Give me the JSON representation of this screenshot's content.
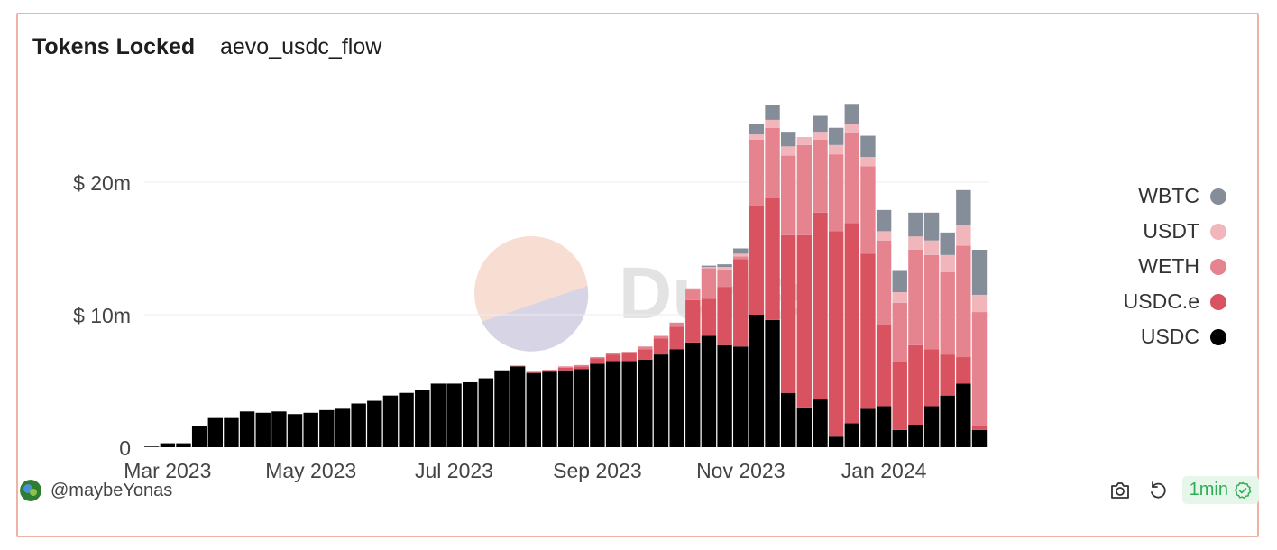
{
  "header": {
    "title": "Tokens Locked",
    "subtitle": "aevo_usdc_flow"
  },
  "footer": {
    "username": "@maybeYonas",
    "refresh_age": "1min"
  },
  "icons": {
    "camera": "camera-icon",
    "refresh": "refresh-icon",
    "check": "check-circle-icon",
    "avatar": "avatar-icon"
  },
  "watermark": {
    "text": "Dune"
  },
  "colors": {
    "WBTC": "#858d99",
    "USDT": "#f0b6bc",
    "WETH": "#e5848f",
    "USDC.e": "#d9525f",
    "USDC": "#000000"
  },
  "chart_data": {
    "type": "bar",
    "stacked": true,
    "title": "Tokens Locked",
    "subtitle": "aevo_usdc_flow",
    "xlabel": "",
    "ylabel": "",
    "ylim": [
      0,
      26
    ],
    "unit": "$ millions",
    "y_ticks": [
      {
        "value": 0,
        "label": "0"
      },
      {
        "value": 10,
        "label": "$ 10m"
      },
      {
        "value": 20,
        "label": "$ 20m"
      }
    ],
    "x_ticks": [
      {
        "index": 1,
        "label": "Mar 2023"
      },
      {
        "index": 10,
        "label": "May 2023"
      },
      {
        "index": 19,
        "label": "Jul 2023"
      },
      {
        "index": 28,
        "label": "Sep 2023"
      },
      {
        "index": 37,
        "label": "Nov 2023"
      },
      {
        "index": 46,
        "label": "Jan 2024"
      }
    ],
    "legend": [
      "WBTC",
      "USDT",
      "WETH",
      "USDC.e",
      "USDC"
    ],
    "series": [
      {
        "name": "USDC",
        "values": [
          0.05,
          0.3,
          0.3,
          1.6,
          2.2,
          2.2,
          2.7,
          2.6,
          2.7,
          2.5,
          2.6,
          2.8,
          2.9,
          3.3,
          3.5,
          3.9,
          4.1,
          4.3,
          4.8,
          4.8,
          4.9,
          5.2,
          5.8,
          6.1,
          5.6,
          5.7,
          5.8,
          5.9,
          6.3,
          6.5,
          6.5,
          6.6,
          7.0,
          7.4,
          7.9,
          8.4,
          7.7,
          7.6,
          10.0,
          9.6,
          4.1,
          3.0,
          3.6,
          0.8,
          1.8,
          2.9,
          3.1,
          1.3,
          1.7,
          3.1,
          3.9,
          4.8,
          1.3
        ]
      },
      {
        "name": "USDC.e",
        "values": [
          0,
          0,
          0,
          0,
          0,
          0,
          0,
          0,
          0,
          0,
          0,
          0,
          0,
          0,
          0,
          0,
          0,
          0,
          0,
          0,
          0,
          0,
          0,
          0.05,
          0.05,
          0.1,
          0.2,
          0.2,
          0.4,
          0.5,
          0.6,
          0.8,
          1.2,
          1.7,
          3.2,
          2.8,
          4.4,
          6.6,
          8.2,
          9.2,
          11.9,
          13.0,
          14.1,
          15.5,
          15.1,
          11.7,
          6.1,
          5.1,
          6.0,
          4.3,
          3.1,
          2.0,
          0.3
        ]
      },
      {
        "name": "WETH",
        "values": [
          0,
          0,
          0,
          0,
          0,
          0,
          0,
          0,
          0,
          0,
          0,
          0,
          0,
          0,
          0,
          0,
          0,
          0,
          0,
          0,
          0,
          0,
          0,
          0,
          0.05,
          0.05,
          0.1,
          0.1,
          0.1,
          0.1,
          0.1,
          0.2,
          0.2,
          0.3,
          0.8,
          2.3,
          1.3,
          0.2,
          5.0,
          5.3,
          6.0,
          6.8,
          5.5,
          5.8,
          6.8,
          6.6,
          6.4,
          4.5,
          7.2,
          7.1,
          6.2,
          8.4,
          8.6
        ]
      },
      {
        "name": "USDT",
        "values": [
          0,
          0,
          0,
          0,
          0,
          0,
          0,
          0,
          0,
          0,
          0,
          0,
          0,
          0,
          0,
          0,
          0,
          0,
          0,
          0,
          0,
          0,
          0,
          0,
          0,
          0,
          0,
          0,
          0,
          0,
          0,
          0,
          0,
          0,
          0.1,
          0.1,
          0.2,
          0.2,
          0.4,
          0.6,
          0.7,
          0.6,
          0.6,
          0.7,
          0.7,
          0.7,
          0.7,
          0.8,
          1.0,
          1.1,
          1.3,
          1.6,
          1.3
        ]
      },
      {
        "name": "WBTC",
        "values": [
          0,
          0,
          0,
          0,
          0,
          0,
          0,
          0,
          0,
          0,
          0,
          0,
          0,
          0,
          0,
          0,
          0,
          0,
          0,
          0,
          0,
          0,
          0,
          0,
          0,
          0,
          0,
          0,
          0,
          0,
          0,
          0,
          0,
          0,
          0,
          0.1,
          0.2,
          0.4,
          0.8,
          1.1,
          1.1,
          0,
          1.2,
          1.3,
          1.5,
          1.6,
          1.6,
          1.6,
          1.8,
          2.1,
          1.7,
          2.6,
          3.4
        ]
      }
    ]
  }
}
